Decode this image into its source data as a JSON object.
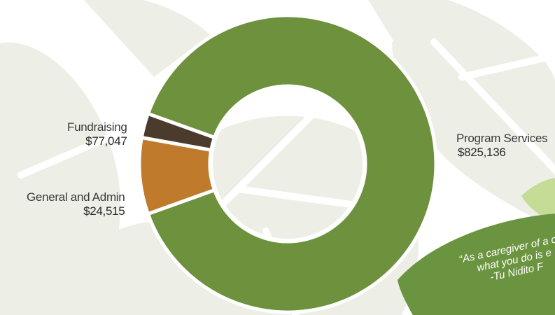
{
  "colors": {
    "program": "#6d913d",
    "fundraising": "#c07a2c",
    "admin": "#4a3b2c",
    "leaf_bg": "#edefe7",
    "leaf_vein": "#ffffff",
    "quote_bg": "#6b9440",
    "quote_accent": "#c5dc97"
  },
  "chart_data": {
    "type": "pie",
    "donut": true,
    "slices": [
      {
        "label": "Program Services",
        "value": 825136,
        "display": "$825,136"
      },
      {
        "label": "Fundraising",
        "value": 77047,
        "display": "$77,047"
      },
      {
        "label": "General and Admin",
        "value": 24515,
        "display": "$24,515"
      }
    ]
  },
  "quote": {
    "line1": "“As a caregiver of a chi",
    "line2": "what you do is e",
    "line3": "-Tu Nidito F"
  }
}
